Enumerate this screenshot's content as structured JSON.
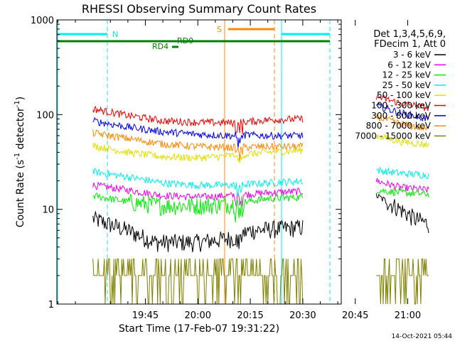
{
  "chart_data": {
    "type": "line",
    "title": "RHESSI Observing Summary Count Rates",
    "xlabel": "Start Time (17-Feb-07 19:31:22)",
    "ylabel_main": "Count Rate (s",
    "ylabel_sup1": "-1",
    "ylabel_mid": " detector",
    "ylabel_sup2": "-1",
    "ylabel_end": ")",
    "timestamp": "14-Oct-2021 05:44",
    "y_scale": "log",
    "ylim": [
      1,
      1000
    ],
    "xlim_minutes": [
      -10.3,
      71.0
    ],
    "x_ticks": [
      {
        "m": 15,
        "label": "19:45"
      },
      {
        "m": 30,
        "label": "20:00"
      },
      {
        "m": 45,
        "label": "20:15"
      },
      {
        "m": 60,
        "label": "20:30"
      },
      {
        "m": 75,
        "label": "20:45"
      },
      {
        "m": 90,
        "label": "21:00"
      }
    ],
    "y_ticks": [
      {
        "v": 1,
        "label": "1"
      },
      {
        "v": 10,
        "label": "10"
      },
      {
        "v": 100,
        "label": "100"
      },
      {
        "v": 1000,
        "label": "1000"
      }
    ],
    "legend_header": [
      "Det 1,3,4,5,6,9,",
      "FDecim 1, Att 0"
    ],
    "series": [
      {
        "name": "3 - 6 keV",
        "color": "#000000",
        "seg1": [
          [
            0,
            8
          ],
          [
            10,
            6
          ],
          [
            18,
            4.5
          ],
          [
            30,
            4.5
          ],
          [
            40,
            5
          ],
          [
            45,
            6
          ],
          [
            60,
            6.5
          ]
        ],
        "seg2": [
          [
            81,
            14
          ],
          [
            88,
            10
          ],
          [
            92,
            8
          ],
          [
            96,
            7
          ]
        ]
      },
      {
        "name": "6 - 12 keV",
        "color": "#ee00ee",
        "seg1": [
          [
            0,
            18
          ],
          [
            10,
            16
          ],
          [
            20,
            14
          ],
          [
            30,
            13.5
          ],
          [
            40,
            14
          ],
          [
            50,
            15
          ],
          [
            60,
            15.5
          ]
        ],
        "seg2": [
          [
            81,
            20
          ],
          [
            88,
            17
          ],
          [
            96,
            16
          ]
        ]
      },
      {
        "name": "12 - 25 keV",
        "color": "#00ee00",
        "seg1": [
          [
            0,
            14
          ],
          [
            10,
            12
          ],
          [
            20,
            11
          ],
          [
            30,
            11
          ],
          [
            40,
            11.5
          ],
          [
            50,
            13
          ],
          [
            60,
            13.5
          ]
        ],
        "seg2": [
          [
            81,
            16
          ],
          [
            88,
            15
          ],
          [
            96,
            14.5
          ]
        ]
      },
      {
        "name": "25 - 50 keV",
        "color": "#00eeee",
        "seg1": [
          [
            0,
            25
          ],
          [
            10,
            22
          ],
          [
            20,
            19
          ],
          [
            30,
            18
          ],
          [
            40,
            18
          ],
          [
            50,
            19
          ],
          [
            60,
            20
          ]
        ],
        "seg2": [
          [
            81,
            26
          ],
          [
            88,
            24
          ],
          [
            96,
            23
          ]
        ]
      },
      {
        "name": "50 - 100 keV",
        "color": "#e0e000",
        "seg1": [
          [
            0,
            47
          ],
          [
            10,
            40
          ],
          [
            20,
            36
          ],
          [
            30,
            35
          ],
          [
            40,
            37
          ],
          [
            50,
            40
          ],
          [
            60,
            42
          ]
        ],
        "seg2": [
          [
            81,
            60
          ],
          [
            88,
            52
          ],
          [
            96,
            48
          ]
        ]
      },
      {
        "name": "100 - 300 keV",
        "color": "#ee0000",
        "seg1": [
          [
            0,
            115
          ],
          [
            10,
            98
          ],
          [
            20,
            86
          ],
          [
            30,
            83
          ],
          [
            40,
            82
          ],
          [
            44,
            84
          ],
          [
            50,
            88
          ],
          [
            60,
            90
          ]
        ],
        "seg2": [
          [
            81,
            155
          ],
          [
            88,
            132
          ],
          [
            96,
            118
          ]
        ]
      },
      {
        "name": "300 - 800 keV",
        "color": "#0000ee",
        "seg1": [
          [
            0,
            86
          ],
          [
            10,
            74
          ],
          [
            20,
            66
          ],
          [
            30,
            62
          ],
          [
            40,
            60
          ],
          [
            44,
            61
          ],
          [
            50,
            60
          ],
          [
            60,
            60
          ]
        ],
        "seg2": [
          [
            81,
            125
          ],
          [
            88,
            104
          ],
          [
            96,
            90
          ]
        ]
      },
      {
        "name": "800 - 7000 keV",
        "color": "#ff8800",
        "seg1": [
          [
            0,
            64
          ],
          [
            10,
            56
          ],
          [
            20,
            49
          ],
          [
            30,
            46
          ],
          [
            40,
            45
          ],
          [
            50,
            46
          ],
          [
            60,
            46
          ]
        ],
        "seg2": [
          [
            81,
            95
          ],
          [
            88,
            80
          ],
          [
            96,
            70
          ]
        ]
      },
      {
        "name": "7000 - 15000 keV",
        "color": "#808000",
        "seg1": [
          [
            0,
            2.5
          ],
          [
            60,
            2.5
          ]
        ],
        "seg2": [
          [
            81,
            2.5
          ],
          [
            96,
            2.5
          ]
        ]
      }
    ],
    "flags": [
      {
        "name": "N",
        "color": "#00eeee"
      },
      {
        "name": "S",
        "color": "#ff8800"
      },
      {
        "name": "RD0",
        "color": "#008000"
      },
      {
        "name": "RD4",
        "color": "#008000"
      }
    ]
  }
}
